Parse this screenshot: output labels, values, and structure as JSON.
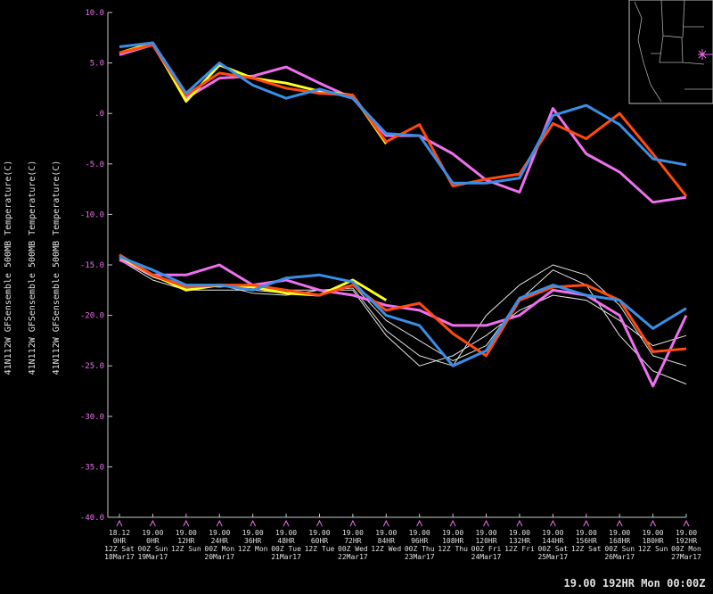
{
  "chart_data": {
    "type": "line",
    "legend": [
      "41N112W GFSensemble 500MB Temperature(C)",
      "41N112W GFSensemble 500MB Temperature(C)",
      "41N112W GFSensemble 500MB Temperature(C)"
    ],
    "status": "19.00 192HR Mon 00:00Z",
    "x": [
      0,
      1,
      2,
      3,
      4,
      5,
      6,
      7,
      8,
      9,
      10,
      11,
      12,
      13,
      14,
      15,
      16,
      17
    ],
    "xlim": [
      0,
      17
    ],
    "xticks": [
      {
        "value": 0,
        "label": [
          "18.12",
          "0HR",
          "12Z Sat",
          "18Mar17"
        ]
      },
      {
        "value": 1,
        "label": [
          "19.00",
          "0HR",
          "00Z Sun",
          "19Mar17"
        ]
      },
      {
        "value": 2,
        "label": [
          "19.00",
          "12HR",
          "12Z Sun"
        ]
      },
      {
        "value": 3,
        "label": [
          "19.00",
          "24HR",
          "00Z Mon",
          "20Mar17"
        ]
      },
      {
        "value": 4,
        "label": [
          "19.00",
          "36HR",
          "12Z Mon"
        ]
      },
      {
        "value": 5,
        "label": [
          "19.00",
          "48HR",
          "00Z Tue",
          "21Mar17"
        ]
      },
      {
        "value": 6,
        "label": [
          "19.00",
          "60HR",
          "12Z Tue"
        ]
      },
      {
        "value": 7,
        "label": [
          "19.00",
          "72HR",
          "00Z Wed",
          "22Mar17"
        ]
      },
      {
        "value": 8,
        "label": [
          "19.00",
          "84HR",
          "12Z Wed"
        ]
      },
      {
        "value": 9,
        "label": [
          "19.00",
          "96HR",
          "00Z Thu",
          "23Mar17"
        ]
      },
      {
        "value": 10,
        "label": [
          "19.00",
          "108HR",
          "12Z Thu"
        ]
      },
      {
        "value": 11,
        "label": [
          "19.00",
          "120HR",
          "00Z Fri",
          "24Mar17"
        ]
      },
      {
        "value": 12,
        "label": [
          "19.00",
          "132HR",
          "12Z Fri"
        ]
      },
      {
        "value": 13,
        "label": [
          "19.00",
          "144HR",
          "00Z Sat",
          "25Mar17"
        ]
      },
      {
        "value": 14,
        "label": [
          "19.00",
          "156HR",
          "12Z Sat"
        ]
      },
      {
        "value": 15,
        "label": [
          "19.00",
          "168HR",
          "00Z Sun",
          "26Mar17"
        ]
      },
      {
        "value": 16,
        "label": [
          "19.00",
          "180HR",
          "12Z Sun"
        ]
      },
      {
        "value": 17,
        "label": [
          "19.00",
          "192HR",
          "00Z Mon",
          "27Mar17"
        ]
      }
    ],
    "ylim": [
      -40,
      10
    ],
    "yticks": [
      {
        "value": 10,
        "label": "10.0"
      },
      {
        "value": 5,
        "label": "5.0"
      },
      {
        "value": 0,
        "label": ".0"
      },
      {
        "value": -5,
        "label": "-5.0"
      },
      {
        "value": -10,
        "label": "-10.0"
      },
      {
        "value": -15,
        "label": "-15.0"
      },
      {
        "value": -20,
        "label": "-20.0"
      },
      {
        "value": -25,
        "label": "-25.0"
      },
      {
        "value": -30,
        "label": "-30.0"
      },
      {
        "value": -35,
        "label": "-35.0"
      },
      {
        "value": -40,
        "label": "-40.0"
      }
    ],
    "series": [
      {
        "color": "#e6e6e6",
        "width": 1,
        "values": [
          -14.5,
          -16.5,
          -17.5,
          -17.5,
          -17.5,
          -17.8,
          -18.0,
          -17.0,
          -20.5,
          -22.5,
          -24.5,
          -23.0,
          -18.5,
          -15.5,
          -17.0,
          -22.0,
          -25.5,
          -26.8
        ]
      },
      {
        "color": "#e6e6e6",
        "width": 1,
        "values": [
          -14.3,
          -16.0,
          -17.0,
          -17.2,
          -17.0,
          -17.5,
          -17.5,
          -17.3,
          -21.5,
          -24.0,
          -25.0,
          -20.0,
          -17.0,
          -15.0,
          -16.0,
          -19.0,
          -24.0,
          -25.0
        ]
      },
      {
        "color": "#e6e6e6",
        "width": 1,
        "values": [
          -14.5,
          -16.2,
          -17.3,
          -17.0,
          -17.8,
          -18.0,
          -17.5,
          -17.5,
          -22.0,
          -25.0,
          -24.0,
          -22.0,
          -19.5,
          -18.0,
          -18.5,
          -20.5,
          -23.0,
          -22.0
        ]
      },
      {
        "color": "#ee70ee",
        "width": 3,
        "values": [
          5.8,
          6.8,
          1.5,
          3.5,
          3.7,
          4.6,
          3.0,
          1.5,
          -2.2,
          -2.2,
          -4.0,
          -6.6,
          -7.8,
          0.5,
          -4.0,
          -5.8,
          -8.8,
          -8.3
        ]
      },
      {
        "color": "#ffff20",
        "width": 3,
        "values": [
          6.0,
          7.0,
          1.2,
          4.8,
          3.5,
          3.0,
          2.2,
          1.8,
          -3.0,
          null,
          null,
          null,
          null,
          null,
          null,
          null,
          null,
          null
        ]
      },
      {
        "color": "#ff4a10",
        "width": 3,
        "values": [
          6.0,
          6.8,
          1.8,
          4.0,
          3.5,
          2.5,
          2.0,
          1.8,
          -2.8,
          -1.1,
          -7.2,
          -6.5,
          -6.0,
          -1.0,
          -2.5,
          0.0,
          -4.0,
          -8.2
        ]
      },
      {
        "color": "#3a8ee6",
        "width": 3,
        "values": [
          6.6,
          7.0,
          2.0,
          5.0,
          2.8,
          1.5,
          2.4,
          1.5,
          -2.0,
          -2.2,
          -6.9,
          -6.9,
          -6.4,
          -0.2,
          0.8,
          -1.1,
          -4.5,
          -5.1
        ]
      },
      {
        "color": "#ee70ee",
        "width": 3,
        "values": [
          -14.5,
          -16.0,
          -16.0,
          -15.0,
          -17.0,
          -16.5,
          -17.5,
          -18.0,
          -19.0,
          -19.5,
          -21.0,
          -21.0,
          -20.0,
          -17.5,
          -18.0,
          -20.0,
          -27.0,
          -20.0
        ]
      },
      {
        "color": "#ffff20",
        "width": 3,
        "values": [
          -14.2,
          -16.0,
          -17.5,
          -17.0,
          -17.2,
          -17.8,
          -18.0,
          -16.5,
          -18.5,
          null,
          null,
          null,
          null,
          null,
          null,
          null,
          null,
          null
        ]
      },
      {
        "color": "#ff4a10",
        "width": 3,
        "values": [
          -14.0,
          -16.0,
          -17.2,
          -17.0,
          -17.0,
          -17.5,
          -18.0,
          -17.0,
          -19.5,
          -18.8,
          -21.8,
          -24.0,
          -18.5,
          -17.2,
          -17.0,
          -18.5,
          -23.6,
          -23.3
        ]
      },
      {
        "color": "#3a8ee6",
        "width": 3,
        "values": [
          -14.2,
          -15.5,
          -17.0,
          -17.0,
          -17.5,
          -16.3,
          -16.0,
          -16.7,
          -20.0,
          -21.0,
          -25.0,
          -23.5,
          -18.3,
          -17.0,
          -18.0,
          -18.5,
          -21.3,
          -19.3
        ]
      }
    ]
  }
}
